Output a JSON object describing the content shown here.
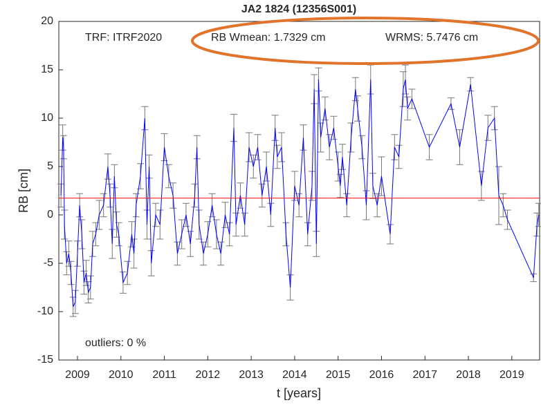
{
  "chart_data": {
    "type": "errorbar-line",
    "title": "JA2    1824 (12356S001)",
    "xlabel": "t [years]",
    "ylabel": "RB [cm]",
    "annotations": [
      "TRF: ITRF2020",
      "RB Wmean: 1.7329 cm",
      "WRMS: 5.7476 cm",
      "outliers: 0 %"
    ],
    "wmean": 1.7329,
    "wmean_color": "#ff0000",
    "xlim": [
      2008.57,
      2019.64
    ],
    "ylim": [
      -15,
      20
    ],
    "xticks": [
      2009,
      2010,
      2011,
      2012,
      2013,
      2014,
      2015,
      2016,
      2017,
      2018,
      2019
    ],
    "yticks": [
      -15,
      -10,
      -5,
      0,
      5,
      10,
      15,
      20
    ],
    "series": [
      {
        "color": "#0000ff",
        "errorbar_color": "#777777",
        "x": [
          2008.62,
          2008.66,
          2008.68,
          2008.7,
          2008.75,
          2008.8,
          2008.85,
          2008.9,
          2008.95,
          2009.0,
          2009.05,
          2009.1,
          2009.15,
          2009.2,
          2009.25,
          2009.3,
          2009.35,
          2009.42,
          2009.5,
          2009.6,
          2009.7,
          2009.75,
          2009.8,
          2009.85,
          2009.9,
          2009.95,
          2010.05,
          2010.15,
          2010.25,
          2010.3,
          2010.35,
          2010.45,
          2010.55,
          2010.6,
          2010.65,
          2010.7,
          2010.8,
          2010.9,
          2011.0,
          2011.1,
          2011.2,
          2011.3,
          2011.4,
          2011.5,
          2011.6,
          2011.7,
          2011.75,
          2011.8,
          2011.9,
          2012.0,
          2012.1,
          2012.2,
          2012.3,
          2012.4,
          2012.5,
          2012.6,
          2012.65,
          2012.75,
          2012.85,
          2012.95,
          2013.05,
          2013.15,
          2013.25,
          2013.35,
          2013.45,
          2013.55,
          2013.6,
          2013.7,
          2013.8,
          2013.9,
          2014.0,
          2014.1,
          2014.2,
          2014.3,
          2014.4,
          2014.45,
          2014.5,
          2014.55,
          2014.6,
          2014.7,
          2014.8,
          2014.9,
          2015.0,
          2015.05,
          2015.1,
          2015.2,
          2015.3,
          2015.4,
          2015.45,
          2015.55,
          2015.65,
          2015.75,
          2015.8,
          2015.9,
          2016.0,
          2016.2,
          2016.3,
          2016.4,
          2016.5,
          2016.55,
          2016.6,
          2016.7,
          2017.1,
          2017.6,
          2017.8,
          2018.05,
          2018.3,
          2018.45,
          2018.6,
          2018.7,
          2018.8,
          2018.9,
          2019.5,
          2019.58,
          2019.62
        ],
        "values": [
          2,
          8,
          7,
          -1,
          -5,
          -4,
          -6,
          -9.5,
          -9,
          -4,
          1,
          -2,
          -7,
          -6,
          -8,
          -7.5,
          -3,
          -2,
          0,
          1,
          5,
          2,
          -3,
          4,
          -1,
          -2,
          -7,
          -6,
          -2,
          -4,
          1,
          4,
          10,
          -1,
          5,
          -5,
          0,
          -1,
          7,
          4,
          2,
          -4,
          -2,
          0,
          -3,
          2,
          7,
          -1,
          -4,
          -2,
          1,
          -2,
          -4,
          0,
          -2,
          9,
          -1,
          2,
          -1,
          7,
          5,
          7,
          2,
          5,
          0,
          9,
          6,
          7,
          -2,
          -7.5,
          3,
          1,
          8,
          -2,
          3,
          13,
          -3,
          14,
          8,
          11,
          7,
          9,
          5,
          3,
          6,
          1,
          8,
          13,
          11,
          7,
          1,
          14,
          3,
          1,
          4,
          -2,
          7,
          6,
          13,
          14,
          11,
          12,
          7,
          11.5,
          7,
          13.5,
          3,
          9,
          10,
          2,
          1,
          -0.5,
          -6.5,
          -1,
          0
        ],
        "errors": [
          1.2,
          1.3,
          1.2,
          1.5,
          1.2,
          1.3,
          1.2,
          1,
          1.2,
          1.3,
          1.2,
          1.5,
          1.2,
          1.3,
          1.1,
          1.2,
          1.3,
          1.2,
          1.5,
          1.2,
          1.3,
          1.2,
          1.5,
          1.2,
          1.3,
          1.2,
          1.1,
          1.2,
          1.3,
          1.5,
          1.2,
          1.3,
          1.2,
          1.5,
          1.2,
          1.3,
          1.2,
          1.5,
          1.4,
          1.2,
          1.3,
          1.2,
          1.5,
          1.2,
          1.3,
          1.2,
          1.2,
          1.5,
          1.2,
          1.3,
          1.2,
          1.5,
          1.2,
          1.3,
          1.2,
          1.4,
          1.2,
          1.3,
          1.2,
          1.5,
          1.2,
          1.3,
          1.2,
          1.5,
          1.2,
          1.3,
          1.2,
          1.5,
          1.2,
          1.3,
          1.5,
          1.2,
          1.3,
          1.2,
          1.5,
          1.5,
          1.3,
          1.2,
          1.5,
          1.2,
          1.3,
          1.2,
          1.5,
          1.2,
          1.3,
          1.2,
          1.5,
          1.2,
          1.3,
          1.2,
          1.5,
          1.5,
          1.3,
          1.2,
          2,
          1,
          1.3,
          1.2,
          1.8,
          1.5,
          1.2,
          1,
          1.3,
          0.6,
          1.8,
          0.7,
          1.5,
          1.3,
          1.2,
          3,
          1.2,
          1,
          0.4,
          1.2,
          1.2
        ]
      }
    ]
  }
}
